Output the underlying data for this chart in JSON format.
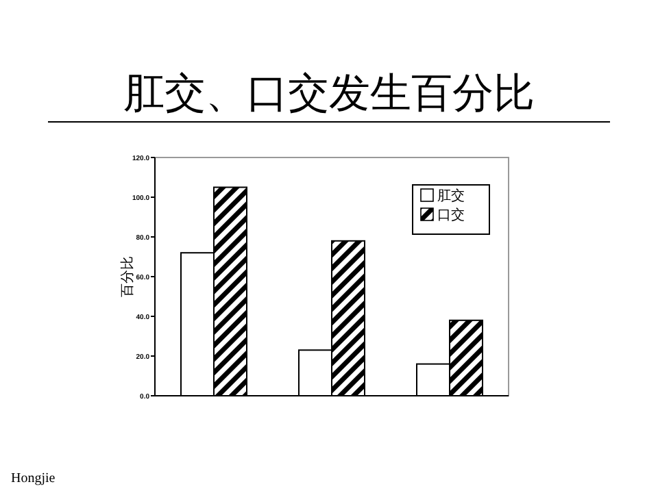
{
  "chart_data": {
    "type": "bar",
    "title": "肛交、口交发生百分比",
    "ylabel": "百分比",
    "categories": [
      null,
      null,
      null
    ],
    "series": [
      {
        "name": "肛交",
        "color": "#ffffff",
        "values": [
          72,
          23,
          16
        ]
      },
      {
        "name": "口交",
        "color": "#000000",
        "values": [
          105,
          78,
          38
        ]
      }
    ],
    "ylim": [
      0,
      120
    ],
    "yticks": [
      {
        "value": 0,
        "label": "0.0"
      },
      {
        "value": 20,
        "label": "20.0"
      },
      {
        "value": 40,
        "label": "40.0"
      },
      {
        "value": 60,
        "label": "60.0"
      },
      {
        "value": 80,
        "label": "80.0"
      },
      {
        "value": 100,
        "label": "100.0"
      },
      {
        "value": 120,
        "label": "120.0"
      }
    ],
    "legend": "top right",
    "annotations": [
      "Hongjie"
    ]
  }
}
